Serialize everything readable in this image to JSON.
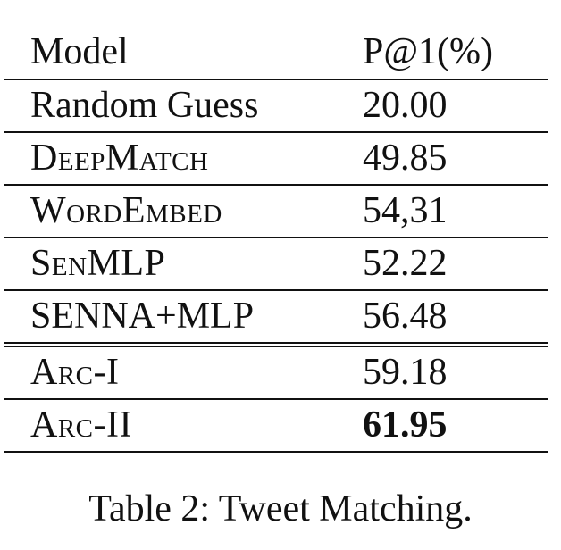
{
  "table": {
    "headers": {
      "model": "Model",
      "score": "P@1(%)"
    },
    "rows": [
      {
        "model": "Random Guess",
        "score": "20.00",
        "small_caps": false,
        "bold": false
      },
      {
        "model": "DeepMatch",
        "score": "49.85",
        "small_caps": true,
        "bold": false
      },
      {
        "model": "WordEmbed",
        "score": "54,31",
        "small_caps": true,
        "bold": false
      },
      {
        "model": "SenMLP",
        "score": "52.22",
        "small_caps": true,
        "bold": false
      },
      {
        "model": "SENNA+MLP",
        "score": "56.48",
        "small_caps": false,
        "bold": false
      },
      {
        "model": "Arc-I",
        "score": "59.18",
        "small_caps": true,
        "bold": false
      },
      {
        "model": "Arc-II",
        "score": "61.95",
        "small_caps": true,
        "bold": true
      }
    ]
  },
  "caption": "Table 2: Tweet Matching."
}
